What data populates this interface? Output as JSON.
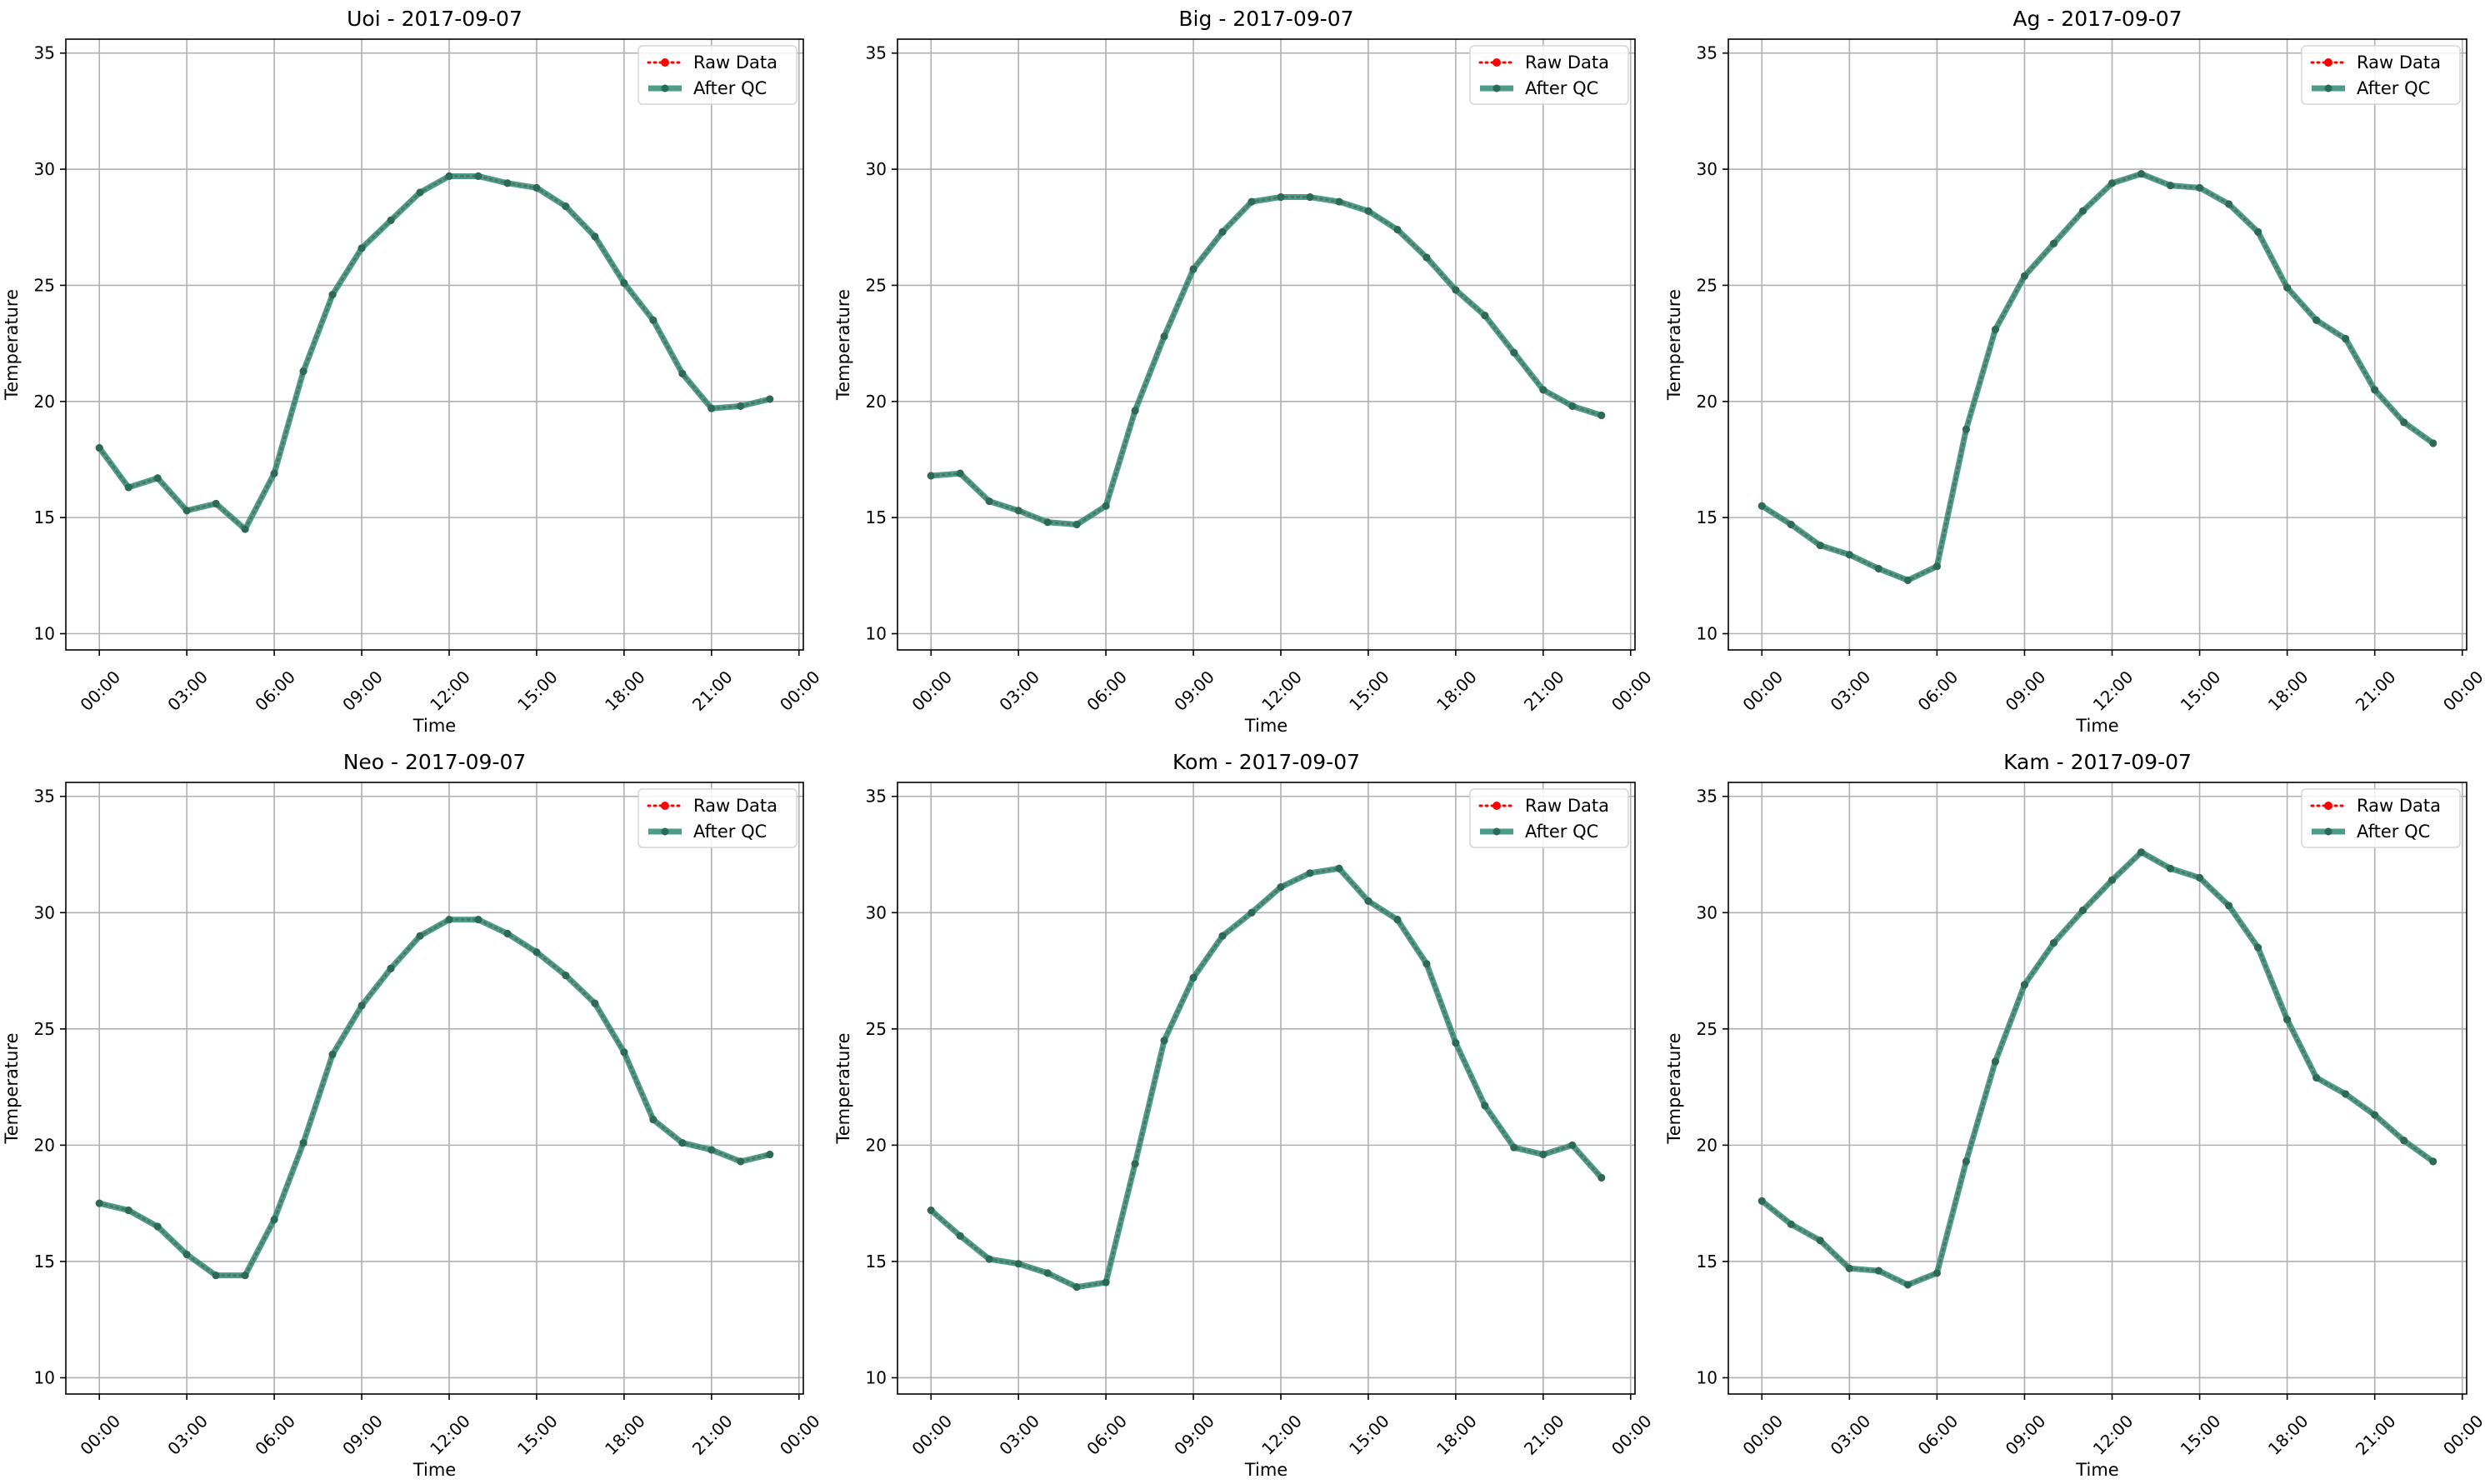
{
  "chart_data": [
    {
      "type": "line",
      "title": "Uoi - 2017-09-07",
      "xlabel": "Time",
      "ylabel": "Temperature",
      "xlim": [
        -1.15,
        24.15
      ],
      "ylim": [
        9.3,
        35.6
      ],
      "x_ticks": [
        "00:00",
        "03:00",
        "06:00",
        "09:00",
        "12:00",
        "15:00",
        "18:00",
        "21:00",
        "00:00"
      ],
      "y_ticks": [
        10,
        15,
        20,
        25,
        30,
        35
      ],
      "grid": true,
      "legend_position": "top-right",
      "x": [
        0,
        1,
        2,
        3,
        4,
        5,
        6,
        7,
        8,
        9,
        10,
        11,
        12,
        13,
        14,
        15,
        16,
        17,
        18,
        19,
        20,
        21,
        22,
        23
      ],
      "series": [
        {
          "name": "Raw Data",
          "color": "#ff0000",
          "style": "dotted",
          "values": [
            18.0,
            16.3,
            16.7,
            15.3,
            15.6,
            14.5,
            16.9,
            21.3,
            24.6,
            26.6,
            27.8,
            29.0,
            29.7,
            29.7,
            29.4,
            29.2,
            28.4,
            27.1,
            25.1,
            23.5,
            21.2,
            19.7,
            19.8,
            20.1
          ]
        },
        {
          "name": "After QC",
          "color": "#2e8b74",
          "style": "solid",
          "values": [
            18.0,
            16.3,
            16.7,
            15.3,
            15.6,
            14.5,
            16.9,
            21.3,
            24.6,
            26.6,
            27.8,
            29.0,
            29.7,
            29.7,
            29.4,
            29.2,
            28.4,
            27.1,
            25.1,
            23.5,
            21.2,
            19.7,
            19.8,
            20.1
          ]
        }
      ]
    },
    {
      "type": "line",
      "title": "Big - 2017-09-07",
      "xlabel": "Time",
      "ylabel": "Temperature",
      "xlim": [
        -1.15,
        24.15
      ],
      "ylim": [
        9.3,
        35.6
      ],
      "x_ticks": [
        "00:00",
        "03:00",
        "06:00",
        "09:00",
        "12:00",
        "15:00",
        "18:00",
        "21:00",
        "00:00"
      ],
      "y_ticks": [
        10,
        15,
        20,
        25,
        30,
        35
      ],
      "grid": true,
      "legend_position": "top-right",
      "x": [
        0,
        1,
        2,
        3,
        4,
        5,
        6,
        7,
        8,
        9,
        10,
        11,
        12,
        13,
        14,
        15,
        16,
        17,
        18,
        19,
        20,
        21,
        22,
        23
      ],
      "series": [
        {
          "name": "Raw Data",
          "color": "#ff0000",
          "style": "dotted",
          "values": [
            16.8,
            16.9,
            15.7,
            15.3,
            14.8,
            14.7,
            15.5,
            19.6,
            22.8,
            25.7,
            27.3,
            28.6,
            28.8,
            28.8,
            28.6,
            28.2,
            27.4,
            26.2,
            24.8,
            23.7,
            22.1,
            20.5,
            19.8,
            19.4
          ]
        },
        {
          "name": "After QC",
          "color": "#2e8b74",
          "style": "solid",
          "values": [
            16.8,
            16.9,
            15.7,
            15.3,
            14.8,
            14.7,
            15.5,
            19.6,
            22.8,
            25.7,
            27.3,
            28.6,
            28.8,
            28.8,
            28.6,
            28.2,
            27.4,
            26.2,
            24.8,
            23.7,
            22.1,
            20.5,
            19.8,
            19.4
          ]
        }
      ]
    },
    {
      "type": "line",
      "title": "Ag - 2017-09-07",
      "xlabel": "Time",
      "ylabel": "Temperature",
      "xlim": [
        -1.15,
        24.15
      ],
      "ylim": [
        9.3,
        35.6
      ],
      "x_ticks": [
        "00:00",
        "03:00",
        "06:00",
        "09:00",
        "12:00",
        "15:00",
        "18:00",
        "21:00",
        "00:00"
      ],
      "y_ticks": [
        10,
        15,
        20,
        25,
        30,
        35
      ],
      "grid": true,
      "legend_position": "top-right",
      "x": [
        0,
        1,
        2,
        3,
        4,
        5,
        6,
        7,
        8,
        9,
        10,
        11,
        12,
        13,
        14,
        15,
        16,
        17,
        18,
        19,
        20,
        21,
        22,
        23
      ],
      "series": [
        {
          "name": "Raw Data",
          "color": "#ff0000",
          "style": "dotted",
          "values": [
            15.5,
            14.7,
            13.8,
            13.4,
            12.8,
            12.3,
            12.9,
            18.8,
            23.1,
            25.4,
            26.8,
            28.2,
            29.4,
            29.8,
            29.3,
            29.2,
            28.5,
            27.3,
            24.9,
            23.5,
            22.7,
            20.5,
            19.1,
            18.2
          ]
        },
        {
          "name": "After QC",
          "color": "#2e8b74",
          "style": "solid",
          "values": [
            15.5,
            14.7,
            13.8,
            13.4,
            12.8,
            12.3,
            12.9,
            18.8,
            23.1,
            25.4,
            26.8,
            28.2,
            29.4,
            29.8,
            29.3,
            29.2,
            28.5,
            27.3,
            24.9,
            23.5,
            22.7,
            20.5,
            19.1,
            18.2
          ]
        }
      ]
    },
    {
      "type": "line",
      "title": "Neo - 2017-09-07",
      "xlabel": "Time",
      "ylabel": "Temperature",
      "xlim": [
        -1.15,
        24.15
      ],
      "ylim": [
        9.3,
        35.6
      ],
      "x_ticks": [
        "00:00",
        "03:00",
        "06:00",
        "09:00",
        "12:00",
        "15:00",
        "18:00",
        "21:00",
        "00:00"
      ],
      "y_ticks": [
        10,
        15,
        20,
        25,
        30,
        35
      ],
      "grid": true,
      "legend_position": "top-right",
      "x": [
        0,
        1,
        2,
        3,
        4,
        5,
        6,
        7,
        8,
        9,
        10,
        11,
        12,
        13,
        14,
        15,
        16,
        17,
        18,
        19,
        20,
        21,
        22,
        23
      ],
      "series": [
        {
          "name": "Raw Data",
          "color": "#ff0000",
          "style": "dotted",
          "values": [
            17.5,
            17.2,
            16.5,
            15.3,
            14.4,
            14.4,
            16.8,
            20.1,
            23.9,
            26.0,
            27.6,
            29.0,
            29.7,
            29.7,
            29.1,
            28.3,
            27.3,
            26.1,
            24.0,
            21.1,
            20.1,
            19.8,
            19.3,
            19.6
          ]
        },
        {
          "name": "After QC",
          "color": "#2e8b74",
          "style": "solid",
          "values": [
            17.5,
            17.2,
            16.5,
            15.3,
            14.4,
            14.4,
            16.8,
            20.1,
            23.9,
            26.0,
            27.6,
            29.0,
            29.7,
            29.7,
            29.1,
            28.3,
            27.3,
            26.1,
            24.0,
            21.1,
            20.1,
            19.8,
            19.3,
            19.6
          ]
        }
      ]
    },
    {
      "type": "line",
      "title": "Kom - 2017-09-07",
      "xlabel": "Time",
      "ylabel": "Temperature",
      "xlim": [
        -1.15,
        24.15
      ],
      "ylim": [
        9.3,
        35.6
      ],
      "x_ticks": [
        "00:00",
        "03:00",
        "06:00",
        "09:00",
        "12:00",
        "15:00",
        "18:00",
        "21:00",
        "00:00"
      ],
      "y_ticks": [
        10,
        15,
        20,
        25,
        30,
        35
      ],
      "grid": true,
      "legend_position": "top-right",
      "x": [
        0,
        1,
        2,
        3,
        4,
        5,
        6,
        7,
        8,
        9,
        10,
        11,
        12,
        13,
        14,
        15,
        16,
        17,
        18,
        19,
        20,
        21,
        22,
        23
      ],
      "series": [
        {
          "name": "Raw Data",
          "color": "#ff0000",
          "style": "dotted",
          "values": [
            17.2,
            16.1,
            15.1,
            14.9,
            14.5,
            13.9,
            14.1,
            19.2,
            24.5,
            27.2,
            29.0,
            30.0,
            31.1,
            31.7,
            31.9,
            30.5,
            29.7,
            27.8,
            24.4,
            21.7,
            19.9,
            19.6,
            20.0,
            18.6
          ]
        },
        {
          "name": "After QC",
          "color": "#2e8b74",
          "style": "solid",
          "values": [
            17.2,
            16.1,
            15.1,
            14.9,
            14.5,
            13.9,
            14.1,
            19.2,
            24.5,
            27.2,
            29.0,
            30.0,
            31.1,
            31.7,
            31.9,
            30.5,
            29.7,
            27.8,
            24.4,
            21.7,
            19.9,
            19.6,
            20.0,
            18.6
          ]
        }
      ]
    },
    {
      "type": "line",
      "title": "Kam - 2017-09-07",
      "xlabel": "Time",
      "ylabel": "Temperature",
      "xlim": [
        -1.15,
        24.15
      ],
      "ylim": [
        9.3,
        35.6
      ],
      "x_ticks": [
        "00:00",
        "03:00",
        "06:00",
        "09:00",
        "12:00",
        "15:00",
        "18:00",
        "21:00",
        "00:00"
      ],
      "y_ticks": [
        10,
        15,
        20,
        25,
        30,
        35
      ],
      "grid": true,
      "legend_position": "top-right",
      "x": [
        0,
        1,
        2,
        3,
        4,
        5,
        6,
        7,
        8,
        9,
        10,
        11,
        12,
        13,
        14,
        15,
        16,
        17,
        18,
        19,
        20,
        21,
        22,
        23
      ],
      "series": [
        {
          "name": "Raw Data",
          "color": "#ff0000",
          "style": "dotted",
          "values": [
            17.6,
            16.6,
            15.9,
            14.7,
            14.6,
            14.0,
            14.5,
            19.3,
            23.6,
            26.9,
            28.7,
            30.1,
            31.4,
            32.6,
            31.9,
            31.5,
            30.3,
            28.5,
            25.4,
            22.9,
            22.2,
            21.3,
            20.2,
            19.3
          ]
        },
        {
          "name": "After QC",
          "color": "#2e8b74",
          "style": "solid",
          "values": [
            17.6,
            16.6,
            15.9,
            14.7,
            14.6,
            14.0,
            14.5,
            19.3,
            23.6,
            26.9,
            28.7,
            30.1,
            31.4,
            32.6,
            31.9,
            31.5,
            30.3,
            28.5,
            25.4,
            22.9,
            22.2,
            21.3,
            20.2,
            19.3
          ]
        }
      ]
    }
  ]
}
